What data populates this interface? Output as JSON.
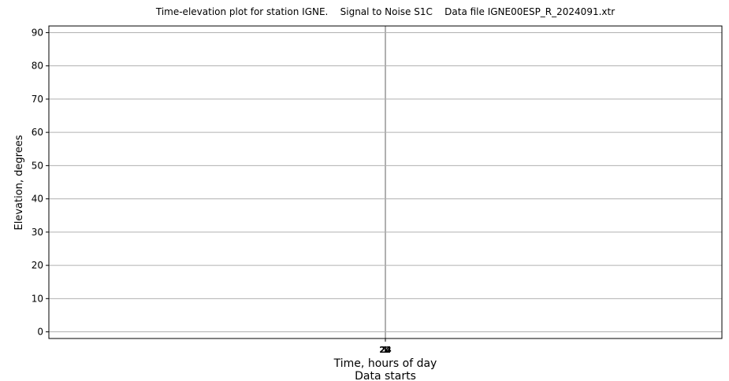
{
  "chart_data": {
    "type": "scatter",
    "title": "Time-elevation plot for station IGNE.    Signal to Noise S1C    Data file IGNE00ESP_R_2024091.xtr",
    "xlabel": "Time, hours of day",
    "xlabel2": "Data starts",
    "ylabel": "Elevation, degrees",
    "ylim": [
      -2,
      92
    ],
    "yticks": [
      0,
      10,
      20,
      30,
      40,
      50,
      60,
      70,
      80,
      90
    ],
    "xlim": [
      -0.5,
      0.5
    ],
    "x_vertical_line": 0,
    "xticks_overlapping": [
      "23",
      "24",
      "1"
    ],
    "grid": true,
    "series": []
  }
}
